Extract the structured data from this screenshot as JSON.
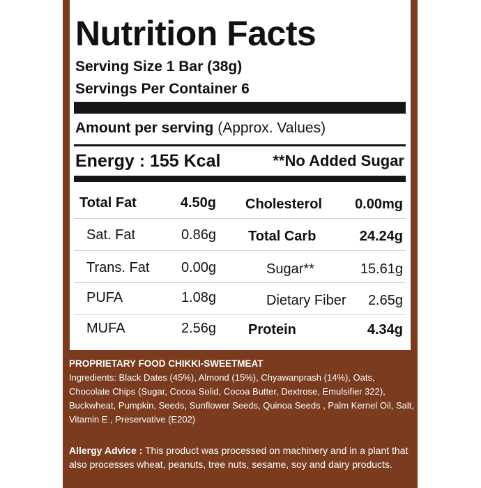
{
  "title": "Nutrition Facts",
  "serving_size": "Serving Size 1 Bar (38g)",
  "servings_per_container": "Servings Per Container 6",
  "amount_label": "Amount per serving",
  "amount_note": "(Approx. Values)",
  "energy": "Energy : 155 Kcal",
  "no_added_sugar": "**No Added Sugar",
  "rows": [
    {
      "left_label": "Total Fat",
      "left_value": "4.50g",
      "right_label": "Cholesterol",
      "right_value": "0.00mg"
    },
    {
      "left_label": "Sat. Fat",
      "left_value": "0.86g",
      "right_label": "Total Carb",
      "right_value": "24.24g"
    },
    {
      "left_label": "Trans. Fat",
      "left_value": "0.00g",
      "right_label": "Sugar**",
      "right_value": "15.61g"
    },
    {
      "left_label": "PUFA",
      "left_value": "1.08g",
      "right_label": "Dietary Fiber",
      "right_value": "2.65g"
    },
    {
      "left_label": "MUFA",
      "left_value": "2.56g",
      "right_label": "Protein",
      "right_value": "4.34g"
    }
  ],
  "ingredients_heading": "PROPRIETARY FOOD CHIKKI-SWEETMEAT",
  "ingredients_text": "Ingredients: Black Dates (45%), Almond (15%), Chyawanprash (14%), Oats, Chocolate Chips (Sugar, Cocoa Solid, Cocoa Butter, Dextrose, Emulsifier 322), Buckwheat, Pumpkin, Seeds, Sunflower Seeds, Quinoa Seeds , Palm Kernel Oil, Salt, Vitamin E , Preservative (E202)",
  "allergy_label": "Allergy Advice :",
  "allergy_text": "This product was processed on machinery and in a plant that also processes wheat, peanuts, tree nuts, sesame, soy and dairy products.",
  "colors": {
    "background": "#7a3b1f",
    "panel": "#ffffff",
    "rules": "#151515"
  }
}
